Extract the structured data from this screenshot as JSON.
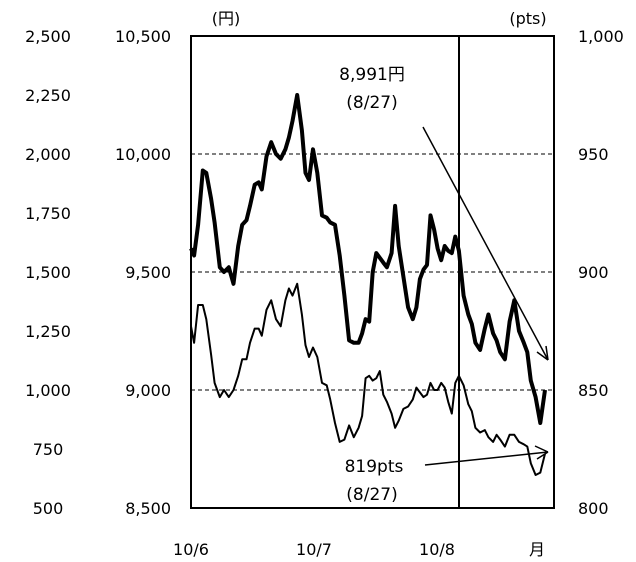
{
  "chart_data": {
    "type": "line",
    "axes": {
      "outer_left": {
        "ticks": [
          "2,500",
          "2,250",
          "2,000",
          "1,750",
          "1,500",
          "1,250",
          "1,000",
          "750",
          "500"
        ]
      },
      "inner_left": {
        "unit": "(円)",
        "ticks": [
          "10,500",
          "10,000",
          "9,500",
          "9,000",
          "8,500"
        ],
        "ylim": [
          8500,
          10500
        ]
      },
      "right": {
        "unit": "(pts)",
        "ticks": [
          "1,000",
          "950",
          "900",
          "850",
          "800"
        ],
        "ylim": [
          800,
          1000
        ]
      },
      "x": {
        "ticks": [
          "10/6",
          "10/7",
          "10/8",
          "月"
        ]
      }
    },
    "grid": true,
    "series": [
      {
        "axis": "inner_left",
        "style": "thick",
        "x": [
          0.0,
          0.13,
          0.3,
          0.5,
          0.65,
          0.85,
          1.0,
          1.22,
          1.4,
          1.6,
          1.8,
          2.0,
          2.17,
          2.35,
          2.5,
          2.7,
          2.87,
          3.0,
          3.2,
          3.4,
          3.6,
          3.8,
          4.0,
          4.15,
          4.3,
          4.5,
          4.7,
          4.85,
          5.0,
          5.17,
          5.35,
          5.55,
          5.75,
          5.9,
          6.1,
          6.3,
          6.5,
          6.7,
          6.9,
          7.1,
          7.25,
          7.4,
          7.55,
          7.7,
          7.85,
          8.0,
          8.15,
          8.3,
          8.5,
          8.65,
          8.8,
          9.0,
          9.2,
          9.4,
          9.55,
          9.7,
          9.85,
          10.0,
          10.15,
          10.3,
          10.45,
          10.6,
          10.75,
          10.9,
          11.05,
          11.2,
          11.35,
          11.55,
          11.75,
          11.9,
          12.05,
          12.25,
          12.45,
          12.6,
          12.8,
          12.95,
          13.1,
          13.3,
          13.5,
          13.7,
          13.9,
          14.1,
          14.25,
          14.4,
          14.6,
          14.8,
          15.0
        ],
        "y": [
          9600,
          9570,
          9700,
          9930,
          9920,
          9810,
          9710,
          9520,
          9500,
          9520,
          9450,
          9610,
          9700,
          9720,
          9780,
          9870,
          9880,
          9850,
          9990,
          10050,
          10000,
          9980,
          10020,
          10070,
          10140,
          10250,
          10100,
          9920,
          9890,
          10020,
          9920,
          9740,
          9730,
          9710,
          9700,
          9570,
          9400,
          9210,
          9200,
          9200,
          9240,
          9300,
          9290,
          9500,
          9580,
          9560,
          9540,
          9520,
          9580,
          9780,
          9610,
          9480,
          9350,
          9300,
          9350,
          9470,
          9510,
          9530,
          9740,
          9680,
          9600,
          9550,
          9610,
          9590,
          9580,
          9650,
          9590,
          9400,
          9320,
          9280,
          9200,
          9170,
          9260,
          9320,
          9240,
          9210,
          9160,
          9130,
          9290,
          9380,
          9250,
          9200,
          9160,
          9040,
          8970,
          8860,
          9000
        ],
        "label": "8,991円",
        "label_date": "(8/27)"
      },
      {
        "axis": "right",
        "style": "thin",
        "x": [
          0.0,
          0.13,
          0.3,
          0.5,
          0.65,
          0.85,
          1.0,
          1.22,
          1.4,
          1.6,
          1.8,
          2.0,
          2.17,
          2.35,
          2.5,
          2.7,
          2.87,
          3.0,
          3.2,
          3.4,
          3.6,
          3.8,
          4.0,
          4.15,
          4.3,
          4.5,
          4.7,
          4.85,
          5.0,
          5.17,
          5.35,
          5.55,
          5.75,
          5.9,
          6.1,
          6.3,
          6.5,
          6.7,
          6.9,
          7.1,
          7.25,
          7.4,
          7.55,
          7.7,
          7.85,
          8.0,
          8.15,
          8.3,
          8.5,
          8.65,
          8.8,
          9.0,
          9.2,
          9.4,
          9.55,
          9.7,
          9.85,
          10.0,
          10.15,
          10.3,
          10.45,
          10.6,
          10.75,
          10.9,
          11.05,
          11.2,
          11.35,
          11.55,
          11.75,
          11.9,
          12.05,
          12.25,
          12.45,
          12.6,
          12.8,
          12.95,
          13.1,
          13.3,
          13.5,
          13.7,
          13.9,
          14.1,
          14.25,
          14.4,
          14.6,
          14.8,
          15.0
        ],
        "y": [
          877,
          870,
          886,
          886,
          880,
          865,
          853,
          847,
          850,
          847,
          850,
          856,
          863,
          863,
          870,
          876,
          876,
          873,
          884,
          888,
          880,
          877,
          888,
          893,
          890,
          895,
          882,
          869,
          864,
          868,
          864,
          853,
          852,
          846,
          836,
          828,
          829,
          835,
          830,
          834,
          839,
          855,
          856,
          854,
          855,
          858,
          848,
          845,
          840,
          834,
          837,
          842,
          843,
          846,
          851,
          849,
          847,
          848,
          853,
          850,
          850,
          853,
          851,
          845,
          840,
          853,
          856,
          852,
          844,
          841,
          834,
          832,
          833,
          830,
          828,
          831,
          829,
          826,
          831,
          831,
          828,
          827,
          826,
          819,
          814,
          815,
          823
        ],
        "label": "819pts",
        "label_date": "(8/27)"
      }
    ]
  }
}
